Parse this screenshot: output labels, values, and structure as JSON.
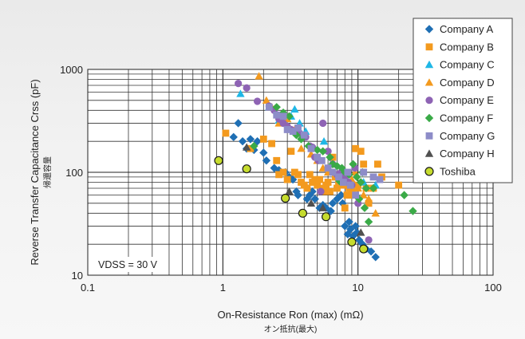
{
  "chart_data": {
    "type": "scatter",
    "x_scale": "log",
    "y_scale": "log",
    "xlim": [
      0.1,
      100
    ],
    "ylim": [
      10,
      1000
    ],
    "xlabel": "On-Resistance Ron (max) (mΩ)",
    "xlabel_sub": "オン抵抗(最大)",
    "ylabel": "Reverse Transfer Capacitance Crss (pF)",
    "ylabel_sub": "帰還容量",
    "x_ticks": [
      "0.1",
      "1",
      "10",
      "100"
    ],
    "y_ticks": [
      "10",
      "100",
      "1000"
    ],
    "grid": true,
    "legend_position": "top-right",
    "annotation": "VDSS = 30 V",
    "series": [
      {
        "name": "Company A",
        "marker": "diamond",
        "color": "#1f6fb4",
        "points": [
          [
            1.2,
            220
          ],
          [
            1.3,
            300
          ],
          [
            1.4,
            200
          ],
          [
            1.5,
            170
          ],
          [
            1.6,
            210
          ],
          [
            1.7,
            165
          ],
          [
            1.8,
            200
          ],
          [
            2.0,
            155
          ],
          [
            2.1,
            130
          ],
          [
            2.4,
            110
          ],
          [
            2.6,
            105
          ],
          [
            2.9,
            100
          ],
          [
            3.1,
            90
          ],
          [
            3.3,
            85
          ],
          [
            3.5,
            65
          ],
          [
            3.6,
            60
          ],
          [
            4.0,
            75
          ],
          [
            4.2,
            55
          ],
          [
            4.4,
            60
          ],
          [
            4.6,
            65
          ],
          [
            4.8,
            55
          ],
          [
            5.2,
            45
          ],
          [
            5.5,
            48
          ],
          [
            5.8,
            45
          ],
          [
            6.5,
            50
          ],
          [
            7.0,
            55
          ],
          [
            7.5,
            60
          ],
          [
            8.0,
            30
          ],
          [
            8.4,
            25
          ],
          [
            8.8,
            28
          ],
          [
            9.2,
            24
          ],
          [
            9.6,
            30
          ],
          [
            10.2,
            22
          ],
          [
            10.8,
            20
          ],
          [
            11.5,
            18
          ],
          [
            12.5,
            17
          ],
          [
            13.5,
            15
          ],
          [
            9.8,
            26
          ],
          [
            8.6,
            33
          ],
          [
            7.7,
            50
          ],
          [
            6.3,
            42
          ]
        ]
      },
      {
        "name": "Company B",
        "marker": "square",
        "color": "#f39a1e",
        "points": [
          [
            1.05,
            240
          ],
          [
            1.6,
            170
          ],
          [
            2.0,
            210
          ],
          [
            2.3,
            190
          ],
          [
            2.5,
            130
          ],
          [
            2.6,
            95
          ],
          [
            2.8,
            100
          ],
          [
            3.0,
            85
          ],
          [
            3.2,
            160
          ],
          [
            3.4,
            100
          ],
          [
            3.6,
            95
          ],
          [
            3.8,
            80
          ],
          [
            4.0,
            75
          ],
          [
            4.2,
            70
          ],
          [
            4.4,
            95
          ],
          [
            4.6,
            80
          ],
          [
            4.8,
            85
          ],
          [
            5.0,
            75
          ],
          [
            5.2,
            85
          ],
          [
            5.4,
            70
          ],
          [
            5.6,
            65
          ],
          [
            5.8,
            75
          ],
          [
            6.0,
            80
          ],
          [
            6.2,
            65
          ],
          [
            6.5,
            140
          ],
          [
            6.8,
            90
          ],
          [
            7.0,
            70
          ],
          [
            7.2,
            80
          ],
          [
            7.5,
            95
          ],
          [
            7.8,
            75
          ],
          [
            8.0,
            45
          ],
          [
            8.3,
            60
          ],
          [
            8.6,
            70
          ],
          [
            9.0,
            65
          ],
          [
            9.3,
            60
          ],
          [
            9.6,
            170
          ],
          [
            10.0,
            75
          ],
          [
            10.5,
            160
          ],
          [
            11.0,
            120
          ],
          [
            11.5,
            70
          ],
          [
            12.0,
            50
          ],
          [
            13.0,
            70
          ],
          [
            14.0,
            120
          ],
          [
            15.0,
            90
          ],
          [
            20.0,
            75
          ]
        ]
      },
      {
        "name": "Company C",
        "marker": "triangle-up",
        "color": "#1fb7e6",
        "points": [
          [
            1.35,
            580
          ],
          [
            2.2,
            430
          ],
          [
            2.6,
            320
          ],
          [
            3.0,
            330
          ],
          [
            3.2,
            350
          ],
          [
            3.4,
            410
          ],
          [
            3.7,
            300
          ],
          [
            4.1,
            250
          ],
          [
            5.6,
            200
          ],
          [
            11.0,
            80
          ],
          [
            13.5,
            75
          ]
        ]
      },
      {
        "name": "Company D",
        "marker": "triangle-up",
        "color": "#f39a1e",
        "points": [
          [
            1.85,
            860
          ],
          [
            2.1,
            500
          ],
          [
            2.3,
            430
          ],
          [
            2.6,
            300
          ],
          [
            3.0,
            330
          ],
          [
            3.4,
            260
          ],
          [
            3.8,
            170
          ],
          [
            4.5,
            150
          ],
          [
            5.0,
            130
          ],
          [
            5.5,
            110
          ],
          [
            6.0,
            100
          ],
          [
            7.0,
            90
          ],
          [
            8.0,
            75
          ],
          [
            9.0,
            85
          ],
          [
            10.0,
            70
          ],
          [
            11.0,
            60
          ],
          [
            12.0,
            55
          ],
          [
            13.5,
            40
          ],
          [
            9.5,
            100
          ]
        ]
      },
      {
        "name": "Company E",
        "marker": "circle",
        "color": "#8e63b4",
        "points": [
          [
            1.3,
            730
          ],
          [
            1.5,
            660
          ],
          [
            1.8,
            490
          ],
          [
            2.2,
            440
          ],
          [
            2.4,
            400
          ],
          [
            2.6,
            330
          ],
          [
            2.8,
            300
          ],
          [
            3.0,
            280
          ],
          [
            3.2,
            260
          ],
          [
            3.4,
            250
          ],
          [
            3.7,
            240
          ],
          [
            4.1,
            220
          ],
          [
            4.4,
            180
          ],
          [
            4.6,
            175
          ],
          [
            4.8,
            140
          ],
          [
            5.1,
            130
          ],
          [
            5.5,
            300
          ],
          [
            6.0,
            160
          ],
          [
            6.5,
            120
          ],
          [
            7.0,
            95
          ],
          [
            7.5,
            100
          ],
          [
            8.0,
            90
          ],
          [
            8.5,
            80
          ],
          [
            9.0,
            75
          ],
          [
            9.5,
            110
          ],
          [
            10.0,
            50
          ],
          [
            5.3,
            65
          ],
          [
            12.0,
            22
          ]
        ]
      },
      {
        "name": "Company F",
        "marker": "diamond",
        "color": "#3aaa47",
        "points": [
          [
            1.7,
            180
          ],
          [
            2.5,
            430
          ],
          [
            2.8,
            380
          ],
          [
            3.1,
            350
          ],
          [
            3.5,
            230
          ],
          [
            3.8,
            210
          ],
          [
            4.3,
            180
          ],
          [
            5.0,
            165
          ],
          [
            5.5,
            160
          ],
          [
            6.2,
            140
          ],
          [
            6.5,
            120
          ],
          [
            7.0,
            115
          ],
          [
            7.6,
            110
          ],
          [
            8.0,
            100
          ],
          [
            8.6,
            95
          ],
          [
            9.2,
            120
          ],
          [
            9.8,
            90
          ],
          [
            10.5,
            80
          ],
          [
            11.5,
            70
          ],
          [
            13.0,
            70
          ],
          [
            10.2,
            55
          ],
          [
            11.2,
            45
          ],
          [
            12.0,
            33
          ],
          [
            22.0,
            60
          ],
          [
            25.5,
            42
          ],
          [
            10.8,
            100
          ],
          [
            7.3,
            82
          ]
        ]
      },
      {
        "name": "Company G",
        "marker": "square",
        "color": "#8d8cc8",
        "points": [
          [
            2.2,
            430
          ],
          [
            2.5,
            360
          ],
          [
            2.8,
            350
          ],
          [
            3.0,
            260
          ],
          [
            3.3,
            250
          ],
          [
            3.6,
            270
          ],
          [
            4.0,
            230
          ],
          [
            4.5,
            170
          ],
          [
            5.0,
            140
          ],
          [
            5.4,
            130
          ],
          [
            6.0,
            110
          ],
          [
            6.5,
            100
          ],
          [
            7.2,
            90
          ],
          [
            7.8,
            80
          ],
          [
            8.4,
            100
          ],
          [
            8.8,
            75
          ],
          [
            9.6,
            60
          ],
          [
            11.0,
            100
          ],
          [
            13.0,
            90
          ],
          [
            14.5,
            85
          ]
        ]
      },
      {
        "name": "Company H",
        "marker": "triangle-up",
        "color": "#505050",
        "points": [
          [
            1.5,
            175
          ],
          [
            3.1,
            65
          ],
          [
            4.5,
            50
          ],
          [
            5.5,
            45
          ],
          [
            10.5,
            26
          ]
        ]
      },
      {
        "name": "Toshiba",
        "marker": "circle",
        "color": "#c6dc2e",
        "points": [
          [
            0.93,
            130
          ],
          [
            1.5,
            108
          ],
          [
            2.9,
            56
          ],
          [
            3.9,
            40
          ],
          [
            5.8,
            37
          ],
          [
            9.0,
            21
          ],
          [
            11.0,
            18
          ]
        ]
      }
    ]
  },
  "legend_labels": [
    "Company A",
    "Company B",
    "Company C",
    "Company D",
    "Company E",
    "Company F",
    "Company G",
    "Company H",
    "Toshiba"
  ]
}
